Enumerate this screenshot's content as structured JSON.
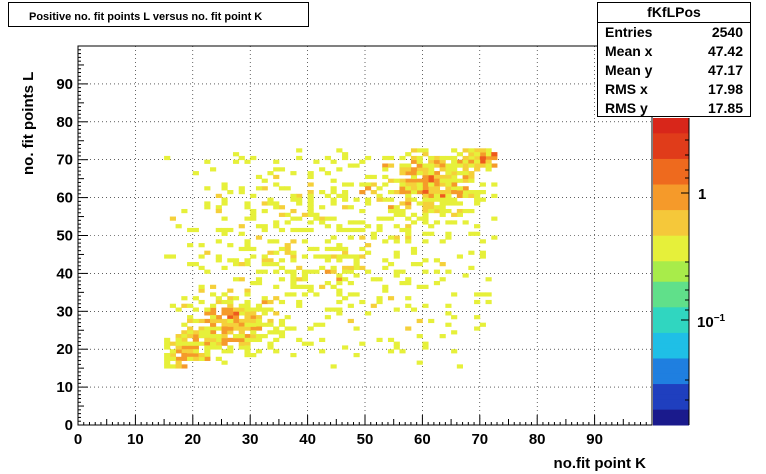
{
  "title": "Positive no. fit points L versus no. fit point K",
  "stats": {
    "name": "fKfLPos",
    "rows": [
      {
        "label": "Entries",
        "value": "2540"
      },
      {
        "label": "Mean x",
        "value": "47.42"
      },
      {
        "label": "Mean y",
        "value": "47.17"
      },
      {
        "label": "RMS x",
        "value": "17.98"
      },
      {
        "label": "RMS y",
        "value": "17.85"
      }
    ]
  },
  "chart_data": {
    "type": "heatmap",
    "title": "Positive no. fit points L versus no. fit point K",
    "xlabel": "no.fit point K",
    "ylabel": "no. fit points  L",
    "xlim": [
      0,
      100
    ],
    "ylim": [
      0,
      100
    ],
    "x_ticks": [
      "0",
      "10",
      "20",
      "30",
      "40",
      "50",
      "60",
      "70",
      "80",
      "90"
    ],
    "y_ticks": [
      "0",
      "10",
      "20",
      "30",
      "40",
      "50",
      "60",
      "70",
      "80",
      "90"
    ],
    "z_scale": "log",
    "z_ticks": [
      "1",
      "10^-1"
    ],
    "bin_width": 1,
    "grid": true,
    "palette": [
      "#1a1a8c",
      "#1f5fd6",
      "#1fb3e6",
      "#30d6a8",
      "#8ee65a",
      "#e6f03a",
      "#f5d03a",
      "#f59a2a",
      "#ee5a1e",
      "#d8261a"
    ],
    "clusters": [
      {
        "cx": 26,
        "cy": 26,
        "sx": 4.0,
        "sy": 4.0,
        "n": 260,
        "peak": 9
      },
      {
        "cx": 18,
        "cy": 18,
        "sx": 2.0,
        "sy": 2.5,
        "n": 90,
        "peak": 8
      },
      {
        "cx": 61,
        "cy": 63,
        "sx": 5.0,
        "sy": 4.5,
        "n": 320,
        "peak": 8
      },
      {
        "cx": 70,
        "cy": 70,
        "sx": 1.8,
        "sy": 1.5,
        "n": 70,
        "peak": 9
      },
      {
        "cx": 42,
        "cy": 45,
        "sx": 16.0,
        "sy": 16.0,
        "n": 650,
        "peak": 4
      }
    ],
    "x_range_filled": [
      15,
      72
    ],
    "y_range_filled": [
      15,
      72
    ]
  }
}
